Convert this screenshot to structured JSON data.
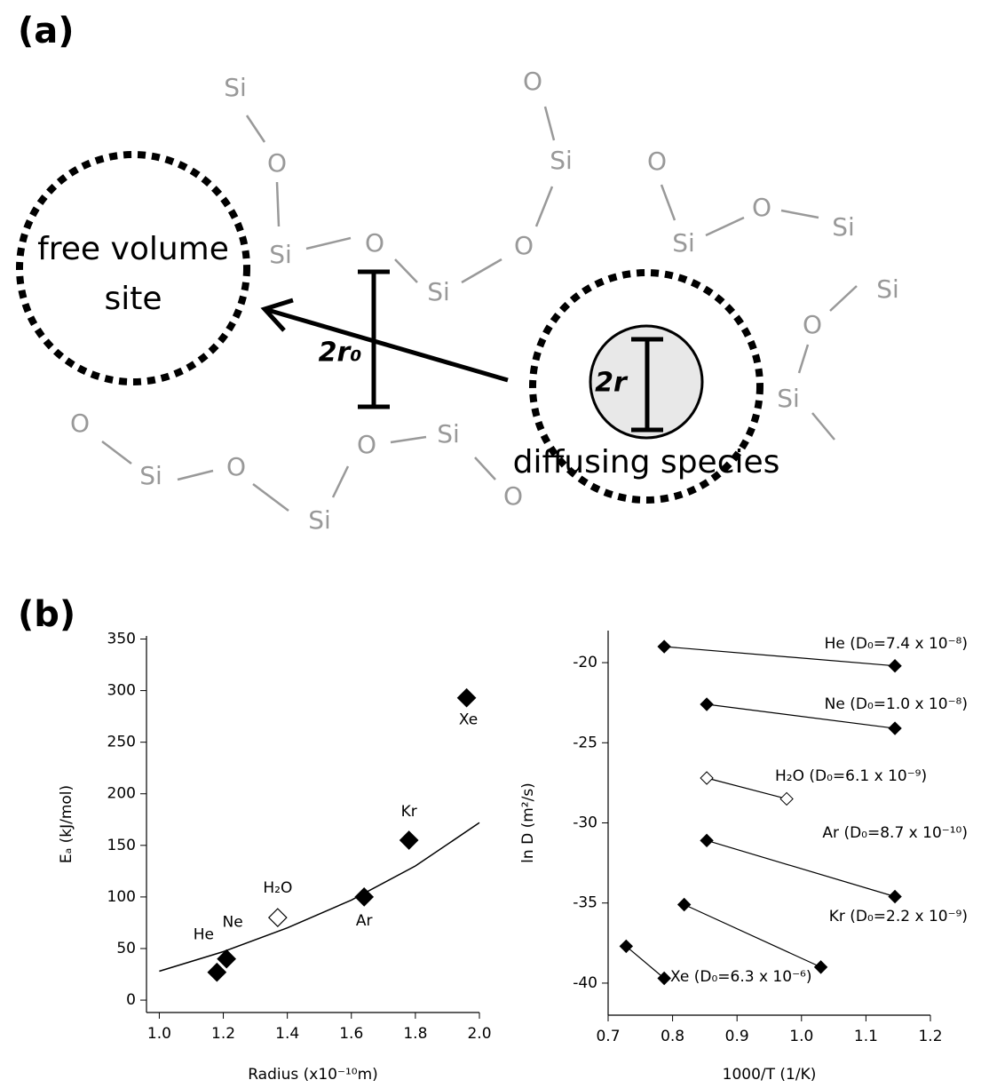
{
  "panel_a": {
    "label": "(a)",
    "atoms": [
      "Si",
      "O",
      "Si",
      "O",
      "Si",
      "O",
      "Si",
      "O",
      "O",
      "Si",
      "O",
      "Si",
      "Si",
      "O",
      "Si",
      "O",
      "Si",
      "O",
      "Si",
      "O",
      "Si",
      "O"
    ],
    "free_volume": [
      "free volume",
      "site"
    ],
    "r0_label": "2r₀",
    "r_label": "2r",
    "species": "diffusing species"
  },
  "panel_b": {
    "label": "(b)"
  },
  "chart_data": [
    {
      "type": "scatter",
      "xlabel": "Radius (x10⁻¹⁰m)",
      "ylabel": "Eₐ (kJ/mol)",
      "x": [
        1.18,
        1.21,
        1.37,
        1.64,
        1.78,
        1.96
      ],
      "values": [
        27,
        40,
        80,
        100,
        155,
        293
      ],
      "point_labels": [
        "He",
        "Ne",
        "H₂O",
        "Ar",
        "Kr",
        "Xe"
      ],
      "filled": [
        true,
        true,
        false,
        true,
        true,
        true
      ],
      "color": "#000000",
      "fit": {
        "x": [
          1.0,
          1.2,
          1.4,
          1.6,
          1.8,
          2.0
        ],
        "values": [
          28,
          47,
          70,
          97,
          130,
          172
        ]
      },
      "xlim": [
        0.96,
        2.0
      ],
      "xticks": [
        {
          "value": 1,
          "label": "1.0"
        },
        1.2,
        1.4,
        1.6,
        1.8,
        {
          "value": 2,
          "label": "2.0"
        }
      ],
      "ylim": [
        -12,
        353
      ],
      "yticks": [
        0,
        50,
        100,
        150,
        200,
        250,
        300,
        350
      ]
    },
    {
      "type": "line",
      "xlabel": "1000/T (1/K)",
      "ylabel": "ln D (m²/s)",
      "series": [
        {
          "name": "He  (D₀=7.4 x 10⁻⁸)",
          "color": "#000000",
          "filled": true,
          "x": [
            0.787,
            1.145
          ],
          "values": [
            -19.0,
            -20.2
          ]
        },
        {
          "name": "Ne  (D₀=1.0 x 10⁻⁸)",
          "color": "#000000",
          "filled": true,
          "x": [
            0.853,
            1.145
          ],
          "values": [
            -22.6,
            -24.1
          ]
        },
        {
          "name": "H₂O  (D₀=6.1 x 10⁻⁹)",
          "color": "#000000",
          "filled": false,
          "x": [
            0.853,
            0.977
          ],
          "values": [
            -27.2,
            -28.5
          ]
        },
        {
          "name": "Ar  (D₀=8.7 x 10⁻¹⁰)",
          "color": "#000000",
          "filled": true,
          "x": [
            0.853,
            1.145
          ],
          "values": [
            -31.1,
            -34.6
          ]
        },
        {
          "name": "Kr  (D₀=2.2 x 10⁻⁹)",
          "color": "#000000",
          "filled": true,
          "x": [
            0.818,
            1.03
          ],
          "values": [
            -35.1,
            -39.0
          ]
        },
        {
          "name": "Xe  (D₀=6.3 x 10⁻⁶)",
          "color": "#000000",
          "filled": true,
          "x": [
            0.728,
            0.787
          ],
          "values": [
            -37.7,
            -39.7
          ]
        }
      ],
      "xlim": [
        0.7,
        1.2
      ],
      "xticks": [
        0.7,
        0.8,
        0.9,
        {
          "value": 1,
          "label": "1.0"
        },
        1.1,
        1.2
      ],
      "ylim": [
        -42,
        -18
      ],
      "yticks": [
        -20,
        -25,
        -30,
        -35,
        -40
      ]
    }
  ]
}
